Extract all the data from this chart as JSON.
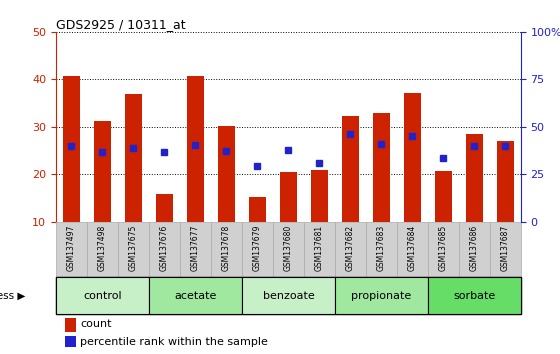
{
  "title": "GDS2925 / 10311_at",
  "samples": [
    "GSM137497",
    "GSM137498",
    "GSM137675",
    "GSM137676",
    "GSM137677",
    "GSM137678",
    "GSM137679",
    "GSM137680",
    "GSM137681",
    "GSM137682",
    "GSM137683",
    "GSM137684",
    "GSM137685",
    "GSM137686",
    "GSM137687"
  ],
  "bar_heights": [
    40.8,
    31.2,
    37.0,
    15.8,
    40.8,
    30.2,
    15.2,
    20.5,
    21.0,
    32.2,
    33.0,
    37.2,
    20.8,
    28.5,
    27.0
  ],
  "blue_values": [
    26.0,
    24.8,
    25.5,
    24.8,
    26.2,
    25.0,
    21.8,
    25.2,
    22.5,
    28.5,
    26.5,
    28.0,
    23.5,
    26.0,
    26.0
  ],
  "bar_color": "#cc2200",
  "blue_color": "#2222cc",
  "ylim_left": [
    10,
    50
  ],
  "ylim_right": [
    0,
    100
  ],
  "yticks_left": [
    10,
    20,
    30,
    40,
    50
  ],
  "yticks_right": [
    0,
    25,
    50,
    75,
    100
  ],
  "yticklabels_right": [
    "0",
    "25",
    "50",
    "75",
    "100%"
  ],
  "groups": [
    {
      "label": "control",
      "indices": [
        0,
        1,
        2
      ],
      "color": "#c8f0c8"
    },
    {
      "label": "acetate",
      "indices": [
        3,
        4,
        5
      ],
      "color": "#a0e8a0"
    },
    {
      "label": "benzoate",
      "indices": [
        6,
        7,
        8
      ],
      "color": "#c8f0c8"
    },
    {
      "label": "propionate",
      "indices": [
        9,
        10,
        11
      ],
      "color": "#a0e8a0"
    },
    {
      "label": "sorbate",
      "indices": [
        12,
        13,
        14
      ],
      "color": "#66dd66"
    }
  ],
  "stress_label": "stress",
  "legend_count_label": "count",
  "legend_pct_label": "percentile rank within the sample",
  "left_axis_color": "#cc2200",
  "right_axis_color": "#2222cc",
  "plot_bg_color": "#ffffff",
  "bar_bottom": 10,
  "blue_square_size": 4.5,
  "sample_box_color": "#d0d0d0",
  "sample_box_edge": "#aaaaaa"
}
